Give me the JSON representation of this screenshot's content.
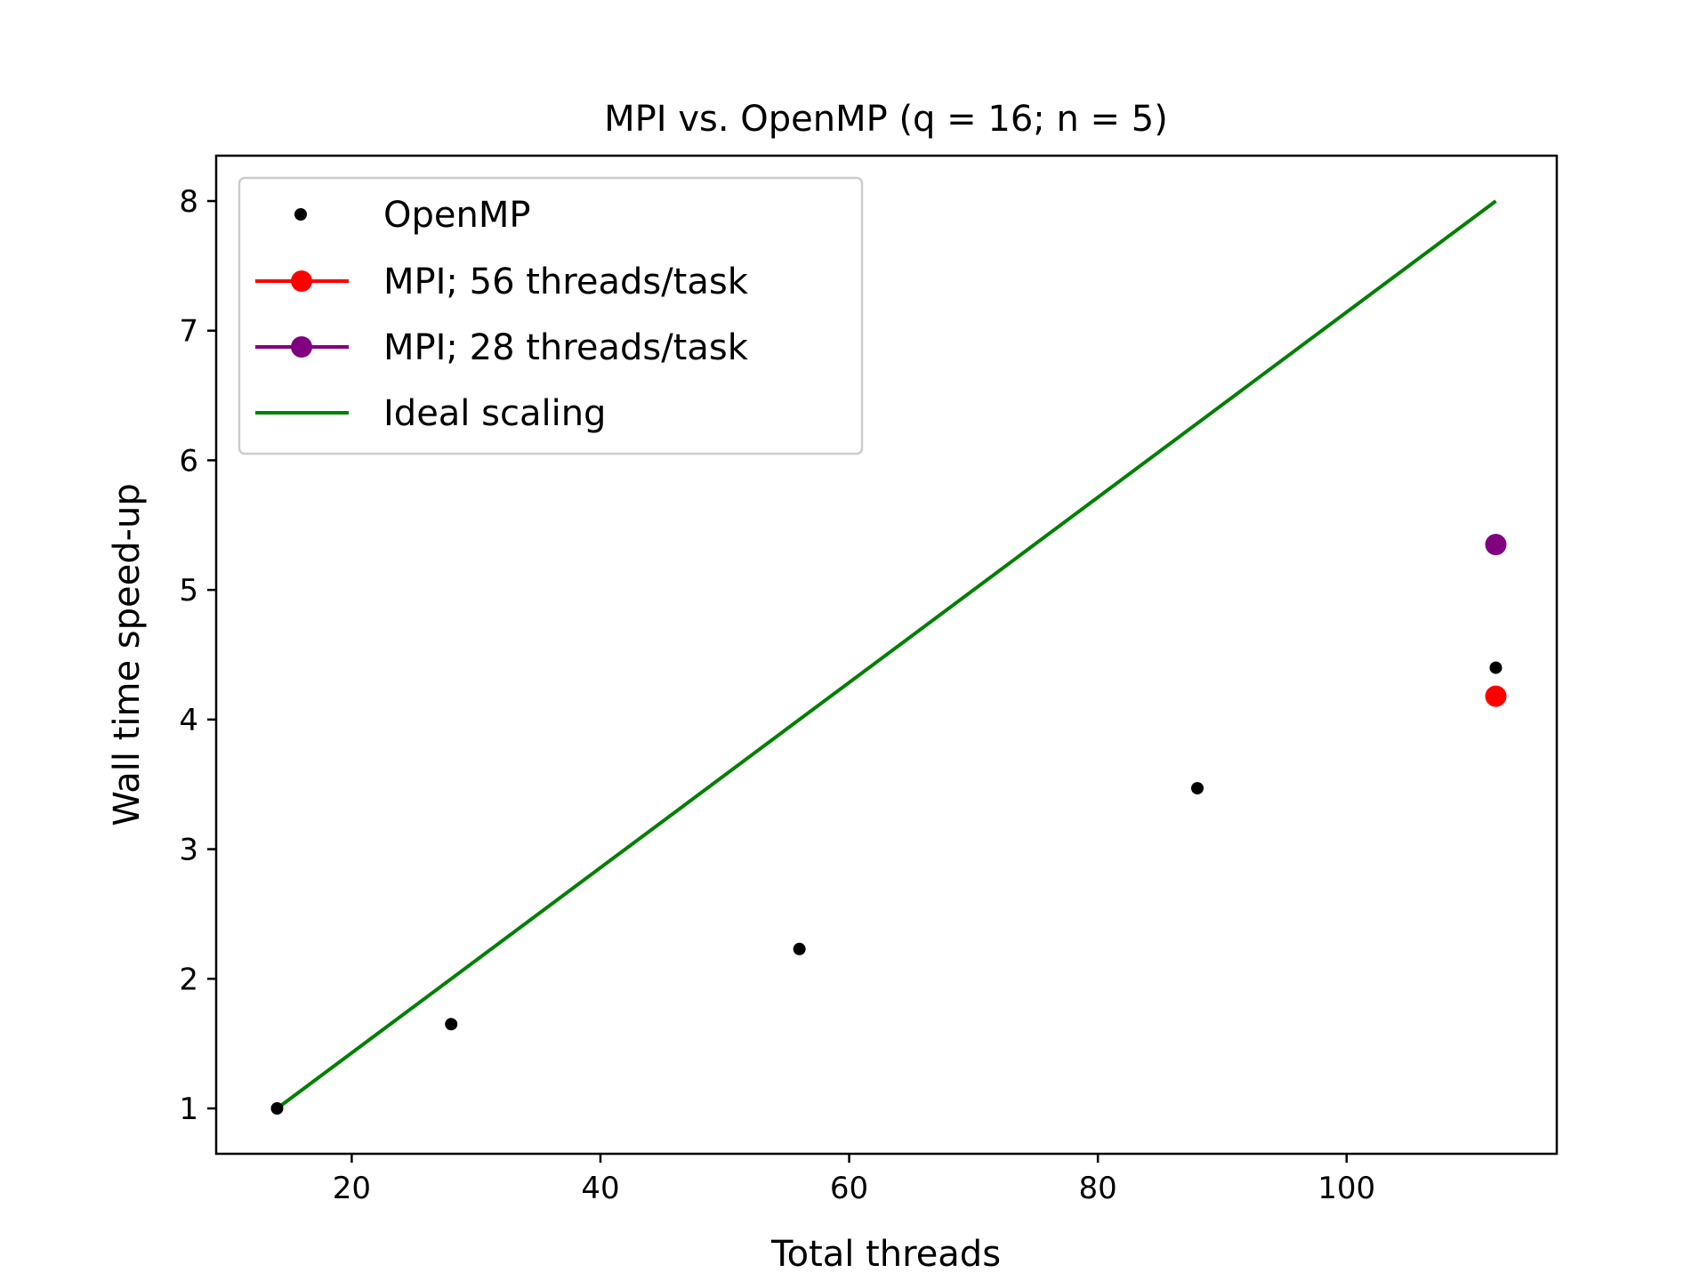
{
  "chart_data": {
    "type": "scatter",
    "title": "MPI vs. OpenMP (q = 16; n = 5)",
    "xlabel": "Total threads",
    "ylabel": "Wall time speed-up",
    "xlim": [
      9.1,
      116.9
    ],
    "ylim": [
      0.65,
      8.35
    ],
    "xticks": [
      20,
      40,
      60,
      80,
      100
    ],
    "yticks": [
      1,
      2,
      3,
      4,
      5,
      6,
      7,
      8
    ],
    "grid": false,
    "legend_position": "upper-left",
    "series": [
      {
        "name": "OpenMP",
        "kind": "scatter",
        "color": "#000000",
        "points": [
          [
            14,
            1.0
          ],
          [
            28,
            1.65
          ],
          [
            56,
            2.23
          ],
          [
            88,
            3.47
          ],
          [
            112,
            4.4
          ]
        ]
      },
      {
        "name": "MPI; 56 threads/task",
        "kind": "line-marker",
        "color": "#ff0000",
        "points": [
          [
            112,
            4.18
          ]
        ]
      },
      {
        "name": "MPI; 28 threads/task",
        "kind": "line-marker",
        "color": "#800080",
        "points": [
          [
            112,
            5.35
          ]
        ]
      },
      {
        "name": "Ideal scaling",
        "kind": "line",
        "color": "#008000",
        "points": [
          [
            14,
            1.0
          ],
          [
            112,
            8.0
          ]
        ]
      }
    ]
  }
}
